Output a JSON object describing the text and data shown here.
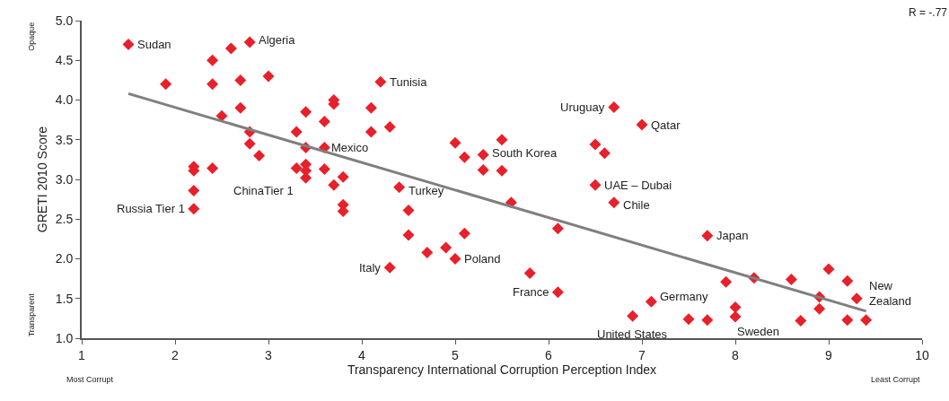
{
  "chart_data": {
    "type": "scatter",
    "xlabel": "Transparency International Corruption Perception Index",
    "ylabel": "GRETI 2010 Score",
    "series": [
      {
        "color": "#e8202a",
        "marker": "diamond",
        "x": [
          1.5,
          1.9,
          2.8,
          2.6,
          2.4,
          2.4,
          2.7,
          3.0,
          2.7,
          2.5,
          2.8,
          2.8,
          2.9,
          3.4,
          3.3,
          3.6,
          3.7,
          3.7,
          3.6,
          3.4,
          3.3,
          3.4,
          3.4,
          3.4,
          3.6,
          3.7,
          3.8,
          3.8,
          3.8,
          2.2,
          2.2,
          2.4,
          2.2,
          2.2,
          4.1,
          4.1,
          4.3,
          4.2,
          4.4,
          4.5,
          4.5,
          4.7,
          4.9,
          5.0,
          4.3,
          5.1,
          5.6,
          6.1,
          5.8,
          6.1,
          6.9,
          5.0,
          5.1,
          5.3,
          5.5,
          5.3,
          5.5,
          6.7,
          7.0,
          6.5,
          6.6,
          6.5,
          6.7,
          7.7,
          7.1,
          7.5,
          7.7,
          8.0,
          8.0,
          7.9,
          8.2,
          8.6,
          8.7,
          8.9,
          8.9,
          9.0,
          9.2,
          9.3,
          9.2,
          9.4
        ],
        "values": [
          4.7,
          4.2,
          4.73,
          4.65,
          4.5,
          4.2,
          4.25,
          4.3,
          3.9,
          3.8,
          3.6,
          3.45,
          3.3,
          3.85,
          3.6,
          3.73,
          4.0,
          3.95,
          3.4,
          3.4,
          3.14,
          3.19,
          3.11,
          3.02,
          3.13,
          2.93,
          3.03,
          2.68,
          2.6,
          3.16,
          3.11,
          3.14,
          2.86,
          2.63,
          3.9,
          3.6,
          3.66,
          4.23,
          2.9,
          2.61,
          2.3,
          2.08,
          2.14,
          2.0,
          1.89,
          2.32,
          2.71,
          2.38,
          1.82,
          1.58,
          1.28,
          3.46,
          3.28,
          3.31,
          3.5,
          3.12,
          3.11,
          3.91,
          3.69,
          3.44,
          3.33,
          2.93,
          2.71,
          2.29,
          1.46,
          1.24,
          1.23,
          1.39,
          1.27,
          1.71,
          1.76,
          1.74,
          1.22,
          1.52,
          1.37,
          1.87,
          1.72,
          1.5,
          1.23,
          1.23
        ]
      },
      {
        "type": "line",
        "color": "#7f7f7f",
        "line_style": "solid",
        "marker": "none",
        "x": [
          1.5,
          9.4
        ],
        "values": [
          4.08,
          1.34
        ]
      }
    ],
    "xlim": [
      1,
      10
    ],
    "xticks": [
      1,
      2,
      3,
      4,
      5,
      6,
      7,
      8,
      9,
      10
    ],
    "ylim": [
      1,
      5
    ],
    "yticks": [
      {
        "value": 1,
        "label": "1.0"
      },
      {
        "value": 1.5,
        "label": "1.5"
      },
      {
        "value": 2,
        "label": "2.0"
      },
      {
        "value": 2.5,
        "label": "2.5"
      },
      {
        "value": 3,
        "label": "3.0"
      },
      {
        "value": 3.5,
        "label": "3.5"
      },
      {
        "value": 4,
        "label": "4.0"
      },
      {
        "value": 4.5,
        "label": "4.5"
      },
      {
        "value": 5,
        "label": "5.0"
      }
    ],
    "annotations": [
      {
        "text": "Sudan",
        "x": 1.5,
        "y": 4.7
      },
      {
        "text": "Algeria",
        "x": 2.8,
        "y": 4.73
      },
      {
        "text": "Tunisia",
        "x": 4.2,
        "y": 4.23
      },
      {
        "text": "Mexico",
        "x": 3.6,
        "y": 3.4
      },
      {
        "text": "ChinaTier 1",
        "x": 3.4,
        "y": 3.02
      },
      {
        "text": "Russia Tier 1",
        "x": 2.2,
        "y": 2.63
      },
      {
        "text": "Turkey",
        "x": 4.4,
        "y": 2.9
      },
      {
        "text": "Italy",
        "x": 4.3,
        "y": 1.89
      },
      {
        "text": "Poland",
        "x": 5.0,
        "y": 2.0
      },
      {
        "text": "France",
        "x": 6.1,
        "y": 1.58
      },
      {
        "text": "South Korea",
        "x": 5.3,
        "y": 3.31
      },
      {
        "text": "Uruguay",
        "x": 6.7,
        "y": 3.91
      },
      {
        "text": "Qatar",
        "x": 7.0,
        "y": 3.69
      },
      {
        "text": "UAE – Dubai",
        "x": 6.5,
        "y": 2.93
      },
      {
        "text": "Chile",
        "x": 6.7,
        "y": 2.71
      },
      {
        "text": "Japan",
        "x": 7.7,
        "y": 2.29
      },
      {
        "text": "Germany",
        "x": 7.1,
        "y": 1.46
      },
      {
        "text": "United States",
        "x": 6.9,
        "y": 1.28
      },
      {
        "text": "Sweden",
        "x": 8.0,
        "y": 1.27
      },
      {
        "text": "New\nZealand",
        "x": 9.3,
        "y": 1.5
      },
      "R = -.77",
      "Opaque",
      "Transparent",
      "Most Corrupt",
      "Least Corrupt"
    ]
  }
}
